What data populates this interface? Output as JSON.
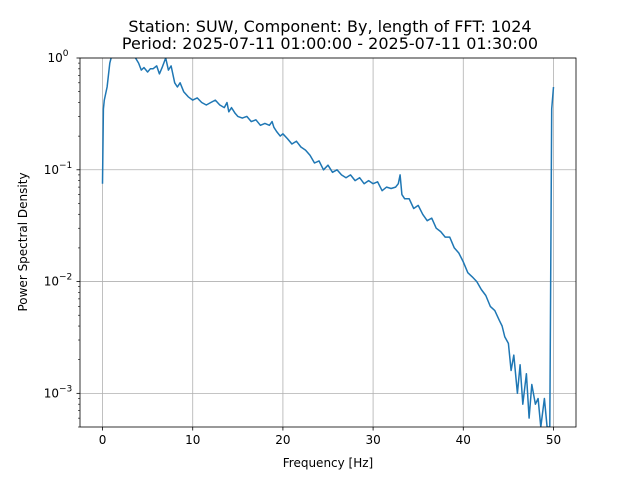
{
  "chart_data": {
    "type": "line",
    "title": "Station: SUW, Component: By, length of FFT: 1024",
    "subtitle": "Period: 2025-07-11 01:00:00 - 2025-07-11 01:30:00",
    "xlabel": "Frequency [Hz]",
    "ylabel": "Power Spectral Density",
    "xlim": [
      -2.5,
      52.5
    ],
    "ylim": [
      0.0005,
      1
    ],
    "yscale": "log",
    "grid": true,
    "xticks": [
      0,
      10,
      20,
      30,
      40,
      50
    ],
    "xtick_labels": [
      "0",
      "10",
      "20",
      "30",
      "40",
      "50"
    ],
    "yticks": [
      1,
      0.1,
      0.01,
      0.001
    ],
    "ytick_base": "10",
    "ytick_exponents": [
      "0",
      "−1",
      "−2",
      "−3"
    ],
    "line_color": "#1f77b4",
    "series": [
      {
        "x": [
          0,
          0.1,
          0.2,
          0.5,
          0.8,
          1.2,
          1.5,
          2.0,
          2.5,
          3.0,
          3.5,
          4.0,
          4.3,
          4.6,
          5.0,
          5.3,
          5.6,
          6.0,
          6.3,
          6.6,
          7.0,
          7.3,
          7.6,
          8.0,
          8.3,
          8.6,
          9.0,
          9.5,
          10.0,
          10.5,
          11.0,
          11.5,
          12.0,
          12.5,
          13.0,
          13.5,
          13.8,
          14.0,
          14.3,
          14.7,
          15.0,
          15.5,
          16.0,
          16.5,
          17.0,
          17.5,
          18.0,
          18.5,
          18.8,
          19.0,
          19.3,
          19.7,
          20.0,
          20.5,
          21.0,
          21.5,
          22.0,
          22.5,
          23.0,
          23.5,
          24.0,
          24.5,
          25.0,
          25.5,
          26.0,
          26.5,
          27.0,
          27.5,
          28.0,
          28.5,
          29.0,
          29.5,
          30.0,
          30.5,
          31.0,
          31.5,
          32.0,
          32.5,
          32.8,
          33.0,
          33.2,
          33.5,
          34.0,
          34.5,
          35.0,
          35.5,
          36.0,
          36.5,
          37.0,
          37.5,
          38.0,
          38.5,
          39.0,
          39.5,
          40.0,
          40.5,
          41.0,
          41.5,
          42.0,
          42.5,
          43.0,
          43.5,
          44.0,
          44.3,
          44.6,
          45.0,
          45.3,
          45.6,
          46.0,
          46.3,
          46.6,
          47.0,
          47.3,
          47.6,
          48.0,
          48.3,
          48.6,
          49.0,
          49.3,
          49.6,
          49.8,
          50.0
        ],
        "values": [
          0.075,
          0.35,
          0.42,
          0.55,
          0.9,
          1.2,
          1.1,
          1.15,
          1.3,
          1.1,
          1.05,
          0.9,
          0.78,
          0.82,
          0.75,
          0.8,
          0.8,
          0.85,
          0.72,
          0.82,
          1.0,
          0.78,
          0.85,
          0.6,
          0.55,
          0.6,
          0.5,
          0.45,
          0.42,
          0.44,
          0.4,
          0.38,
          0.4,
          0.42,
          0.38,
          0.36,
          0.4,
          0.33,
          0.36,
          0.32,
          0.3,
          0.29,
          0.3,
          0.27,
          0.28,
          0.25,
          0.26,
          0.25,
          0.27,
          0.24,
          0.22,
          0.2,
          0.21,
          0.19,
          0.17,
          0.18,
          0.16,
          0.15,
          0.135,
          0.115,
          0.12,
          0.1,
          0.11,
          0.095,
          0.1,
          0.09,
          0.085,
          0.09,
          0.08,
          0.085,
          0.075,
          0.08,
          0.075,
          0.078,
          0.065,
          0.07,
          0.068,
          0.07,
          0.075,
          0.09,
          0.06,
          0.055,
          0.055,
          0.045,
          0.048,
          0.04,
          0.035,
          0.037,
          0.03,
          0.028,
          0.025,
          0.025,
          0.02,
          0.018,
          0.015,
          0.012,
          0.011,
          0.01,
          0.0085,
          0.0075,
          0.006,
          0.0055,
          0.0045,
          0.004,
          0.0032,
          0.0028,
          0.0016,
          0.0022,
          0.001,
          0.0018,
          0.0008,
          0.0015,
          0.0006,
          0.0012,
          0.0008,
          0.0009,
          0.0005,
          0.0009,
          0.0005,
          0.0005,
          0.35,
          0.55
        ]
      }
    ]
  }
}
